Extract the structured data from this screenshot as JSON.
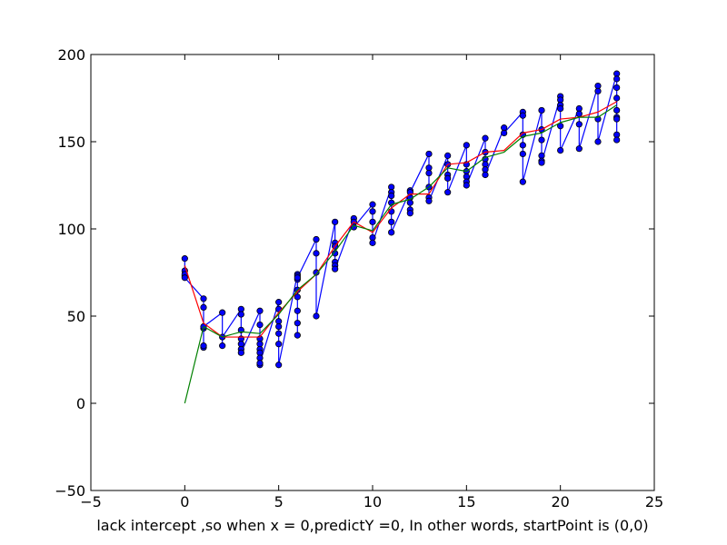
{
  "chart_data": {
    "type": "line",
    "title": "",
    "xlabel": "lack intercept ,so when x = 0,predictY =0, In other words, startPoint is (0,0)",
    "ylabel": "",
    "xlim": [
      -5,
      25
    ],
    "ylim": [
      -50,
      200
    ],
    "xticks": [
      -5,
      0,
      5,
      10,
      15,
      20,
      25
    ],
    "yticks": [
      -50,
      0,
      50,
      100,
      150,
      200
    ],
    "xtick_labels": [
      "−5",
      "0",
      "5",
      "10",
      "15",
      "20",
      "25"
    ],
    "ytick_labels": [
      "−50",
      "0",
      "50",
      "100",
      "150",
      "200"
    ],
    "grid": false,
    "colors": {
      "observed": "#0000ff",
      "marker_fill": "#0000ff",
      "marker_edge": "#000000",
      "fit_with_intercept": "#ff0000",
      "fit_no_intercept": "#008000"
    },
    "series": [
      {
        "style": "line+markers",
        "color": "#0000ff",
        "x": [
          0,
          0,
          0,
          0,
          0,
          1,
          1,
          1,
          1,
          1,
          1,
          2,
          2,
          2,
          3,
          3,
          3,
          3,
          3,
          3,
          3,
          4,
          4,
          4,
          4,
          4,
          4,
          4,
          4,
          4,
          5,
          5,
          5,
          5,
          5,
          5,
          5,
          6,
          6,
          6,
          6,
          6,
          6,
          6,
          6,
          6,
          7,
          7,
          7,
          7,
          8,
          8,
          8,
          8,
          8,
          8,
          8,
          9,
          9,
          9,
          10,
          10,
          10,
          10,
          10,
          11,
          11,
          11,
          11,
          11,
          11,
          11,
          12,
          12,
          12,
          12,
          12,
          12,
          13,
          13,
          13,
          13,
          13,
          13,
          14,
          14,
          14,
          14,
          14,
          15,
          15,
          15,
          15,
          15,
          15,
          16,
          16,
          16,
          16,
          16,
          16,
          17,
          17,
          18,
          18,
          18,
          18,
          18,
          18,
          19,
          19,
          19,
          19,
          19,
          19,
          20,
          20,
          20,
          20,
          20,
          20,
          21,
          21,
          21,
          21,
          22,
          22,
          22,
          22,
          23,
          23,
          23,
          23,
          23,
          23,
          23,
          23,
          23
        ],
        "y": [
          83,
          76,
          73,
          74,
          72,
          60,
          55,
          43,
          32,
          33,
          44,
          52,
          33,
          38,
          54,
          51,
          42,
          37,
          34,
          31,
          29,
          53,
          45,
          37,
          34,
          31,
          29,
          26,
          22,
          23,
          58,
          54,
          47,
          44,
          40,
          34,
          22,
          74,
          73,
          71,
          65,
          61,
          53,
          46,
          39,
          72,
          94,
          86,
          75,
          50,
          104,
          92,
          90,
          86,
          81,
          79,
          77,
          106,
          104,
          101,
          114,
          110,
          104,
          95,
          92,
          124,
          121,
          119,
          115,
          110,
          104,
          98,
          122,
          118,
          115,
          111,
          109,
          121,
          143,
          135,
          132,
          124,
          118,
          116,
          142,
          137,
          131,
          129,
          121,
          148,
          137,
          133,
          130,
          127,
          125,
          152,
          144,
          140,
          137,
          134,
          131,
          158,
          155,
          167,
          165,
          154,
          148,
          143,
          127,
          168,
          157,
          151,
          142,
          139,
          138,
          176,
          174,
          171,
          169,
          159,
          145,
          169,
          166,
          160,
          146,
          182,
          179,
          163,
          150,
          189,
          186,
          181,
          175,
          168,
          164,
          163,
          154,
          151
        ]
      },
      {
        "style": "line",
        "color": "#ff0000",
        "x": [
          0,
          1,
          2,
          3,
          4,
          5,
          6,
          7,
          8,
          9,
          10,
          11,
          12,
          13,
          14,
          15,
          16,
          17,
          18,
          19,
          20,
          21,
          22,
          23
        ],
        "y": [
          79,
          46,
          38,
          38,
          38,
          52,
          64,
          74,
          90,
          104,
          98,
          112,
          120,
          120,
          137,
          138,
          144,
          145,
          155,
          157,
          163,
          164,
          167,
          173
        ]
      },
      {
        "style": "line",
        "color": "#008000",
        "x": [
          0,
          1,
          2,
          3,
          4,
          5,
          6,
          7,
          8,
          9,
          10,
          11,
          12,
          13,
          14,
          15,
          16,
          17,
          18,
          19,
          20,
          21,
          22,
          23
        ],
        "y": [
          0,
          44,
          38,
          41,
          40,
          51,
          65,
          74,
          87,
          102,
          99,
          114,
          117,
          124,
          135,
          133,
          141,
          144,
          153,
          155,
          161,
          164,
          164,
          171
        ]
      }
    ]
  }
}
